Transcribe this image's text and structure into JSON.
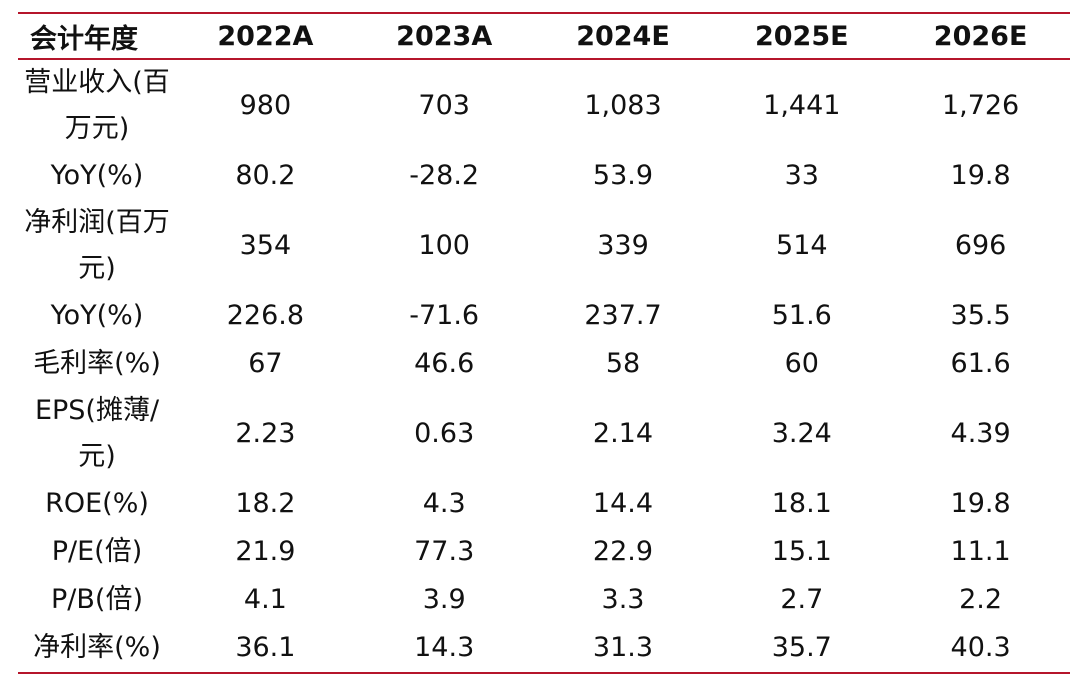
{
  "table": {
    "headers": [
      "会计年度",
      "2022A",
      "2023A",
      "2024E",
      "2025E",
      "2026E"
    ],
    "rows": [
      {
        "label": "营业收入(百万元)",
        "values": [
          "980",
          "703",
          "1,083",
          "1,441",
          "1,726"
        ]
      },
      {
        "label": "YoY(%)",
        "values": [
          "80.2",
          "-28.2",
          "53.9",
          "33",
          "19.8"
        ]
      },
      {
        "label": "净利润(百万元)",
        "values": [
          "354",
          "100",
          "339",
          "514",
          "696"
        ]
      },
      {
        "label": "YoY(%)",
        "values": [
          "226.8",
          "-71.6",
          "237.7",
          "51.6",
          "35.5"
        ]
      },
      {
        "label": "毛利率(%)",
        "values": [
          "67",
          "46.6",
          "58",
          "60",
          "61.6"
        ]
      },
      {
        "label": "EPS(摊薄/元)",
        "values": [
          "2.23",
          "0.63",
          "2.14",
          "3.24",
          "4.39"
        ]
      },
      {
        "label": "ROE(%)",
        "values": [
          "18.2",
          "4.3",
          "14.4",
          "18.1",
          "19.8"
        ]
      },
      {
        "label": "P/E(倍)",
        "values": [
          "21.9",
          "77.3",
          "22.9",
          "15.1",
          "11.1"
        ]
      },
      {
        "label": "P/B(倍)",
        "values": [
          "4.1",
          "3.9",
          "3.3",
          "2.7",
          "2.2"
        ]
      },
      {
        "label": "净利率(%)",
        "values": [
          "36.1",
          "14.3",
          "31.3",
          "35.7",
          "40.3"
        ]
      }
    ]
  },
  "colors": {
    "rule": "#b5152b",
    "text": "#111111"
  }
}
